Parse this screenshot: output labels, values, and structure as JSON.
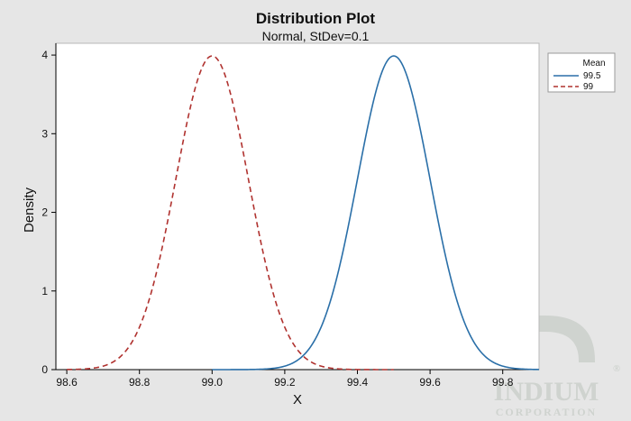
{
  "chart_data": {
    "type": "line",
    "title": "Distribution Plot",
    "subtitle": "Normal, StDev=0.1",
    "xlabel": "X",
    "ylabel": "Density",
    "xlim": [
      98.57,
      99.9
    ],
    "ylim": [
      0,
      4.15
    ],
    "x_ticks": [
      "98.6",
      "98.8",
      "99.0",
      "99.2",
      "99.4",
      "99.6",
      "99.8"
    ],
    "y_ticks": [
      "0",
      "1",
      "2",
      "3",
      "4"
    ],
    "grid": false,
    "legend": {
      "title": "Mean",
      "position": "right",
      "entries": [
        "99.5",
        "99"
      ]
    },
    "series": [
      {
        "name": "99.5",
        "distribution": "normal",
        "mean": 99.5,
        "stdev": 0.1,
        "x_range": [
          99.0,
          99.9
        ],
        "color": "#2a6fa8",
        "style": "solid"
      },
      {
        "name": "99",
        "distribution": "normal",
        "mean": 99.0,
        "stdev": 0.1,
        "x_range": [
          98.6,
          99.5
        ],
        "color": "#b0322f",
        "style": "dashed"
      }
    ]
  },
  "watermark": {
    "brand": "INDIUM",
    "sub": "CORPORATION",
    "mark": "®"
  }
}
